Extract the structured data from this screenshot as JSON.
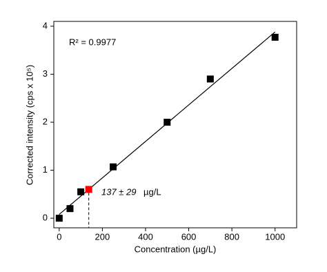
{
  "chart_data": {
    "type": "scatter",
    "xlabel": "Concentration (µg/L)",
    "ylabel": "Corrected intensity (cps x 10⁵)",
    "annotations": [
      "R² = 0.9977",
      "137 ± 29",
      "µg/L"
    ],
    "series": [
      {
        "color": "#000000",
        "x": [
          0,
          50,
          100,
          250,
          500,
          700,
          1000
        ],
        "values": [
          0,
          0.2,
          0.55,
          1.07,
          2.0,
          2.9,
          3.77
        ]
      },
      {
        "color": "#ff0000",
        "x": [
          137
        ],
        "values": [
          0.6
        ]
      }
    ],
    "fit": {
      "color": "#000000",
      "x": [
        0,
        1000
      ],
      "values": [
        0.08,
        3.88
      ]
    },
    "xlim": [
      -25,
      1100
    ],
    "ylim": [
      -0.2,
      4.1
    ],
    "xticks": [
      0,
      200,
      400,
      600,
      800,
      1000
    ],
    "yticks": [
      0,
      1,
      2,
      3,
      4
    ]
  }
}
